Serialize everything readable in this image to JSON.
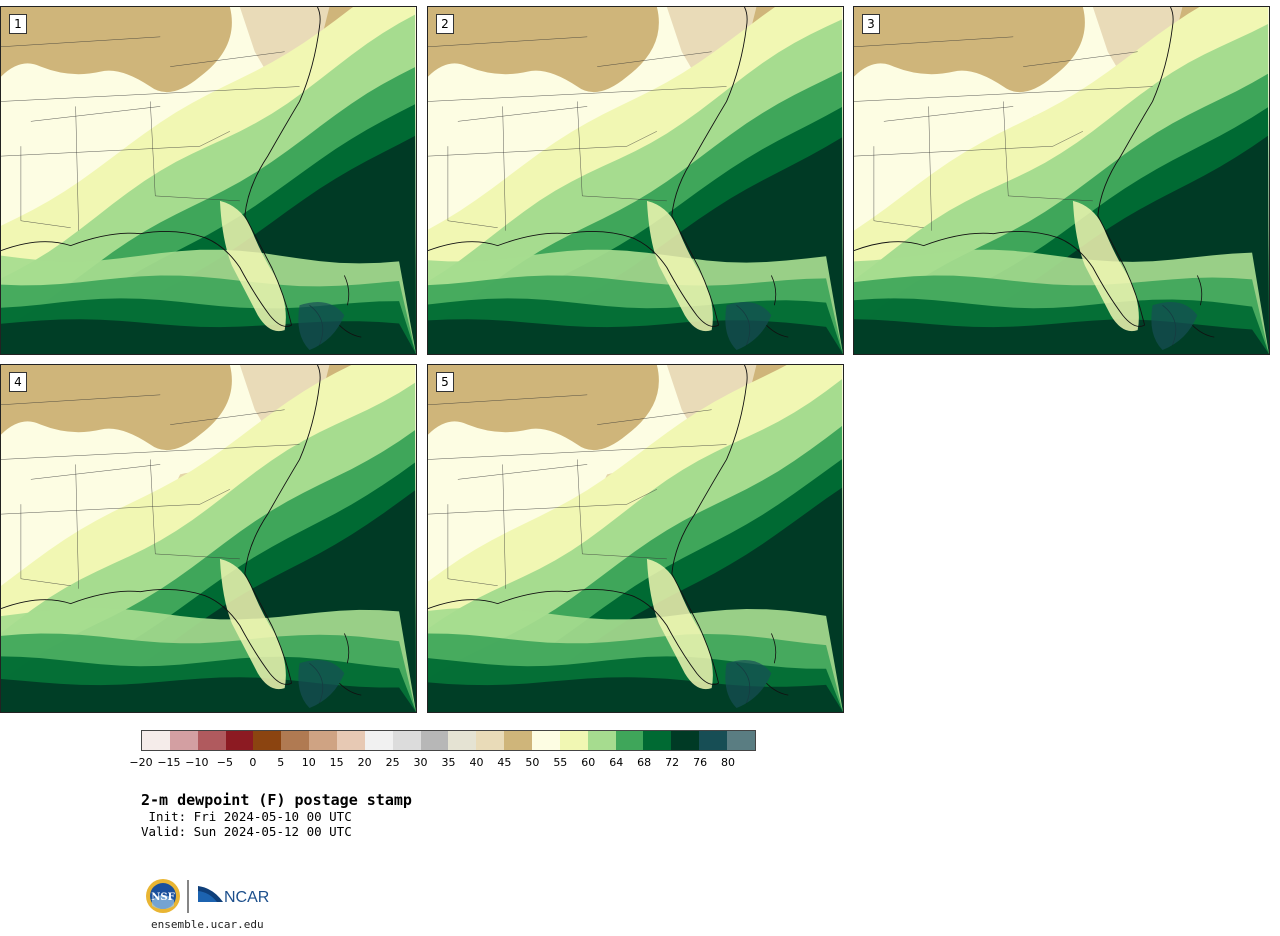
{
  "panels": [
    {
      "label": "1"
    },
    {
      "label": "2"
    },
    {
      "label": "3"
    },
    {
      "label": "4"
    },
    {
      "label": "5"
    }
  ],
  "colorbar": {
    "colors": [
      "#f5ecea",
      "#d39fa2",
      "#b05a5e",
      "#8c1a22",
      "#8b4410",
      "#b07a52",
      "#cfa383",
      "#e7c9b4",
      "#f1f1f1",
      "#dcdcdc",
      "#b7b7b7",
      "#e5e3d3",
      "#e9dbb8",
      "#cfb57a",
      "#fdfde3",
      "#f1f7b3",
      "#a6dc8f",
      "#3fa65a",
      "#006a33",
      "#003a25",
      "#174e55",
      "#5a7d82"
    ],
    "tick_labels": [
      "−20",
      "−15",
      "−10",
      "−5",
      "0",
      "5",
      "10",
      "15",
      "20",
      "25",
      "30",
      "35",
      "40",
      "45",
      "50",
      "55",
      "60",
      "64",
      "68",
      "72",
      "76",
      "80"
    ]
  },
  "title": "2-m dewpoint (F) postage stamp",
  "init_line": " Init: Fri 2024-05-10 00 UTC",
  "valid_line": "Valid: Sun 2024-05-12 00 UTC",
  "logos": {
    "nsf_text": "NSF",
    "ncar_text": "NCAR"
  },
  "footer_url": "ensemble.ucar.edu"
}
